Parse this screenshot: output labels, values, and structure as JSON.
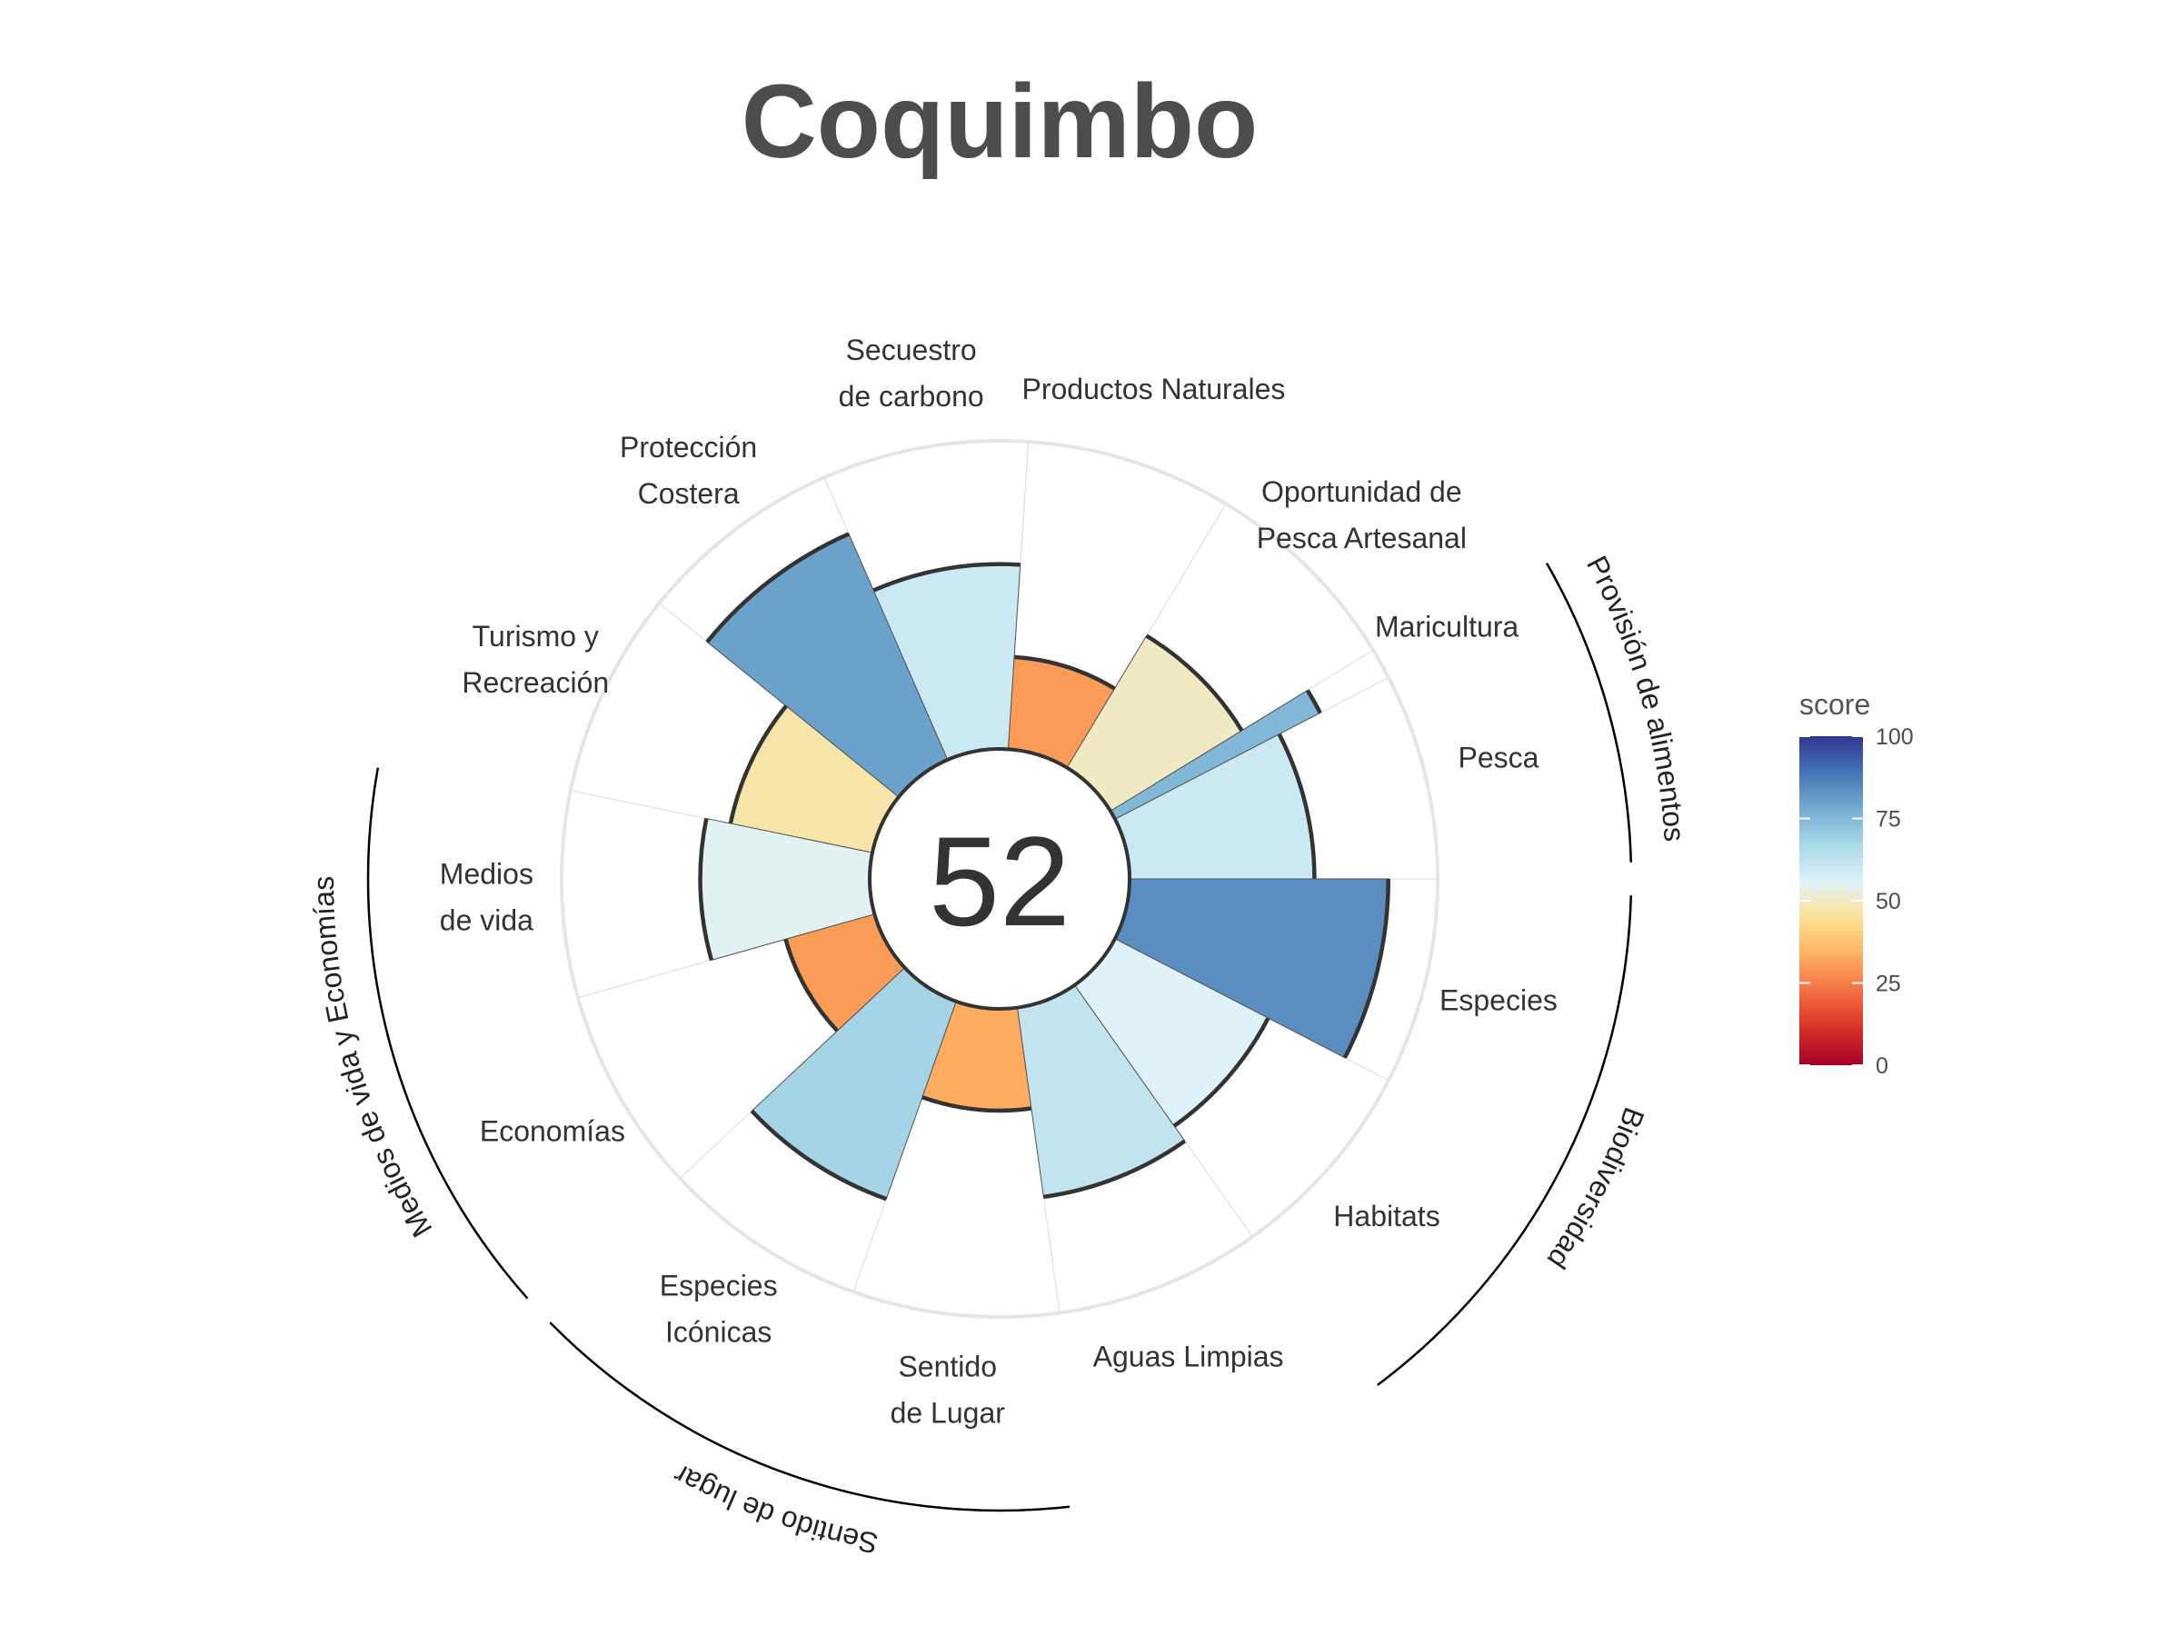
{
  "title": "Coquimbo",
  "chart_data": {
    "type": "polar-bar",
    "title": "Coquimbo",
    "center_score": "52",
    "max_value": 100,
    "goals": [
      {
        "key": "pesca",
        "label": [
          "Pesca"
        ],
        "value": 60,
        "weight": 1
      },
      {
        "key": "maricultura",
        "label": [
          "Maricultura"
        ],
        "value": 75,
        "weight": 0.15
      },
      {
        "key": "oportunidad",
        "label": [
          "Oportunidad de",
          "Pesca Artesanal"
        ],
        "value": 50,
        "weight": 1
      },
      {
        "key": "productos",
        "label": [
          "Productos Naturales"
        ],
        "value": 30,
        "weight": 1
      },
      {
        "key": "secuestro",
        "label": [
          "Secuestro",
          "de carbono"
        ],
        "value": 60,
        "weight": 1
      },
      {
        "key": "proteccion",
        "label": [
          "Protección",
          "Costera"
        ],
        "value": 80,
        "weight": 1
      },
      {
        "key": "turismo",
        "label": [
          "Turismo y",
          "Recreación"
        ],
        "value": 47,
        "weight": 1
      },
      {
        "key": "medios",
        "label": [
          "Medios",
          "de vida"
        ],
        "value": 55,
        "weight": 1
      },
      {
        "key": "economias",
        "label": [
          "Economías"
        ],
        "value": 30,
        "weight": 1
      },
      {
        "key": "iconicas",
        "label": [
          "Especies",
          "Icónicas"
        ],
        "value": 68,
        "weight": 1
      },
      {
        "key": "sentido",
        "label": [
          "Sentido",
          "de Lugar"
        ],
        "value": 33,
        "weight": 1
      },
      {
        "key": "aguas",
        "label": [
          "Aguas Limpias"
        ],
        "value": 62,
        "weight": 1
      },
      {
        "key": "habitats",
        "label": [
          "Habitats"
        ],
        "value": 56,
        "weight": 1
      },
      {
        "key": "especies",
        "label": [
          "Especies"
        ],
        "value": 84,
        "weight": 1
      }
    ],
    "groups": [
      {
        "label": "Provisión de alimentos",
        "from": "pesca",
        "to": "maricultura"
      },
      {
        "label": "Biodiversidad",
        "from": "especies",
        "to": "habitats"
      },
      {
        "label": "Sentido de lugar",
        "from": "iconicas",
        "to": "sentido"
      },
      {
        "label": "Medios de vida y Economías",
        "from": "medios",
        "to": "economias"
      }
    ],
    "legend": {
      "title": "score",
      "ticks": [
        "0",
        "25",
        "50",
        "75",
        "100"
      ],
      "range": [
        0,
        100
      ]
    },
    "colors": {
      "scale": [
        "#a50026",
        "#d73027",
        "#f46d43",
        "#fdae61",
        "#fee090",
        "#e0f3f8",
        "#abd9e9",
        "#74add1",
        "#4575b4",
        "#313695"
      ],
      "outline": "#333333",
      "grid": "#e5e5e5",
      "background": "#ffffff"
    }
  }
}
